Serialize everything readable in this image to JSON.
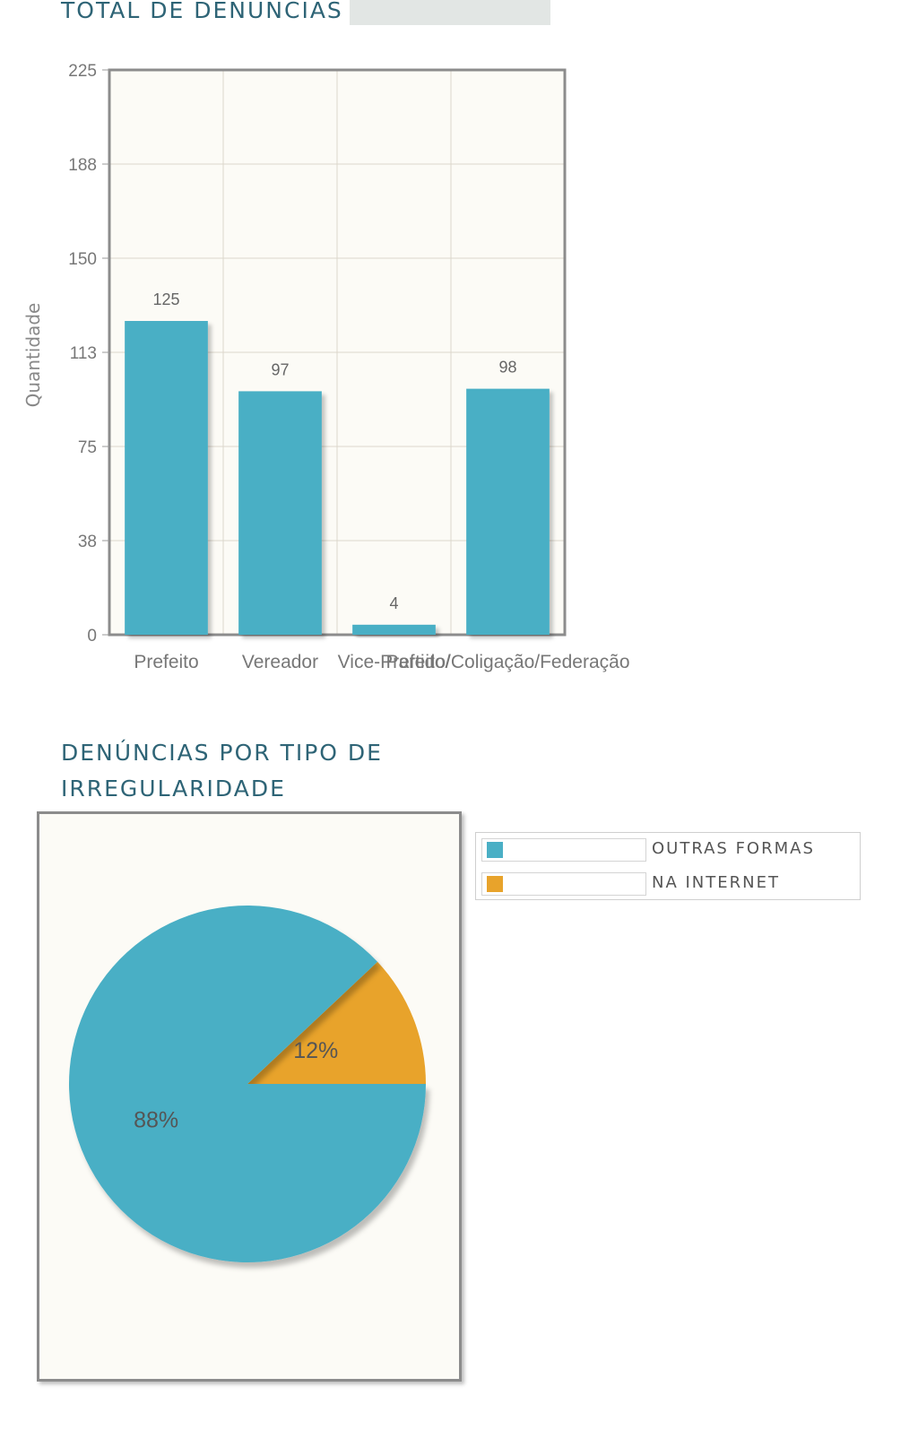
{
  "sections": {
    "bar_title": "TOTAL DE DENÚNCIAS",
    "pie_title": "DENÚNCIAS POR TIPO DE IRREGULARIDADE"
  },
  "colors": {
    "bar": "#4aafc5",
    "pie_primary": "#4aafc5",
    "pie_secondary": "#e8a32b"
  },
  "chart_data": [
    {
      "type": "bar",
      "title": "TOTAL DE DENÚNCIAS",
      "xlabel": "",
      "ylabel": "Quantidade",
      "ylim": [
        0,
        225
      ],
      "yticks": [
        "0",
        "38",
        "75",
        "113",
        "150",
        "188",
        "225"
      ],
      "categories": [
        "Prefeito",
        "Vereador",
        "Vice-Prefeito",
        "Partido/Coligação/Federação"
      ],
      "category_labels_shown": [
        "Prefeito",
        "Vereador",
        "Vice-Prefeito/",
        "Partido/Coligação/Federação"
      ],
      "values": [
        125,
        97,
        4,
        98
      ],
      "data_labels": [
        "125",
        "97",
        "4",
        "98"
      ],
      "grid": true
    },
    {
      "type": "pie",
      "title": "DENÚNCIAS POR TIPO DE IRREGULARIDADE",
      "categories": [
        "OUTRAS FORMAS",
        "NA INTERNET"
      ],
      "values": [
        88,
        12
      ],
      "data_labels": [
        "88%",
        "12%"
      ],
      "legend": "right"
    }
  ]
}
